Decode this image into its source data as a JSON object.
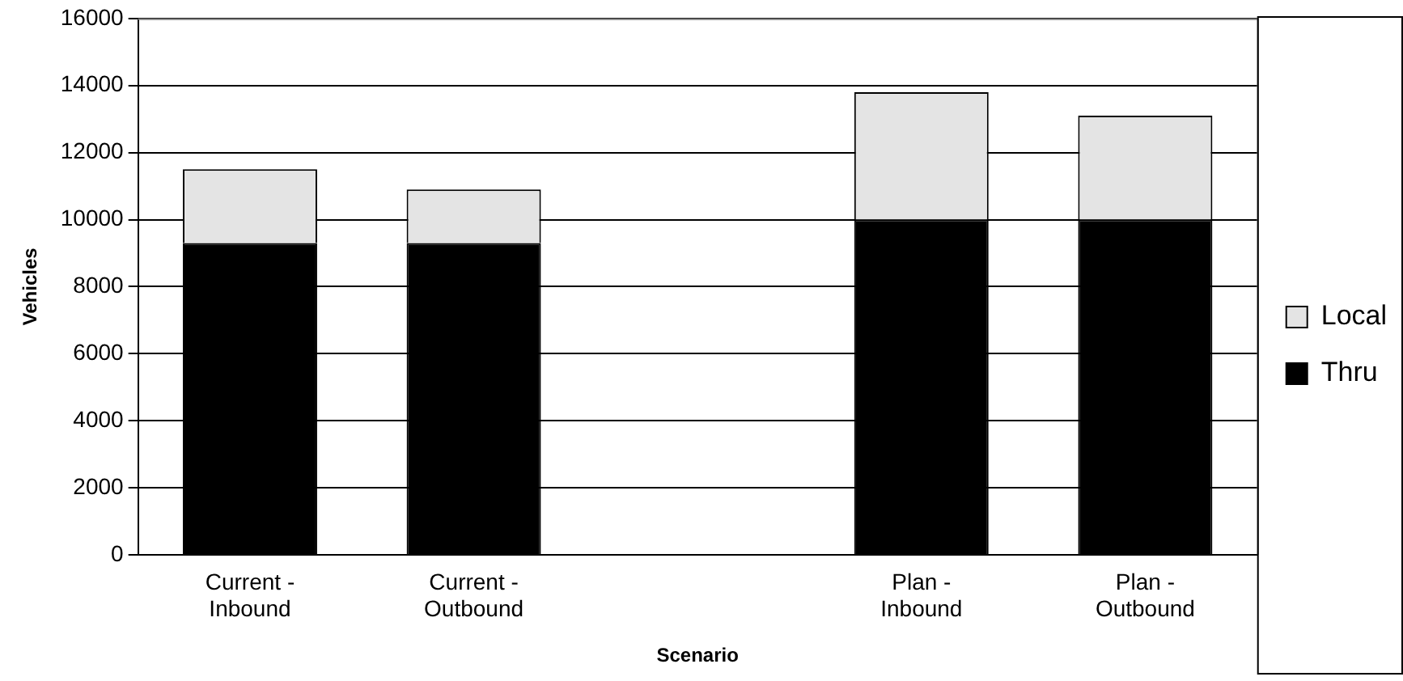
{
  "chart_data": {
    "type": "bar",
    "stacked": true,
    "xlabel": "Scenario",
    "ylabel": "Vehicles",
    "categories": [
      "Current - Inbound",
      "Current - Outbound",
      null,
      "Plan - Inbound",
      "Plan - Outbound"
    ],
    "series": [
      {
        "name": "Thru",
        "color": "#000000",
        "values": [
          9300,
          9300,
          null,
          10000,
          10000
        ]
      },
      {
        "name": "Local",
        "color": "#e4e4e4",
        "values": [
          2200,
          1600,
          null,
          3800,
          3100
        ]
      }
    ],
    "ylim": [
      0,
      16000
    ],
    "yticks": [
      0,
      2000,
      4000,
      6000,
      8000,
      10000,
      12000,
      14000,
      16000
    ],
    "grid": "y",
    "legend": "right"
  }
}
